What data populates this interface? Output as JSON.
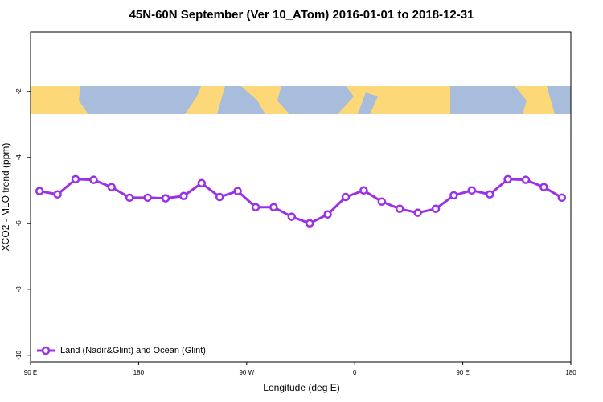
{
  "chart_data": {
    "type": "line",
    "title": "45N-60N September (Ver 10_ATom)   2016-01-01 to 2018-12-31",
    "x_label": "Longitude (deg E)",
    "y_label": "XCO2 - MLO trend (ppm)",
    "xlim": [
      90,
      540
    ],
    "xticks": [
      {
        "value": 90,
        "label": "90 E"
      },
      180,
      {
        "value": 270,
        "label": "90 W"
      },
      {
        "value": 360,
        "label": "0"
      },
      {
        "value": 450,
        "label": "90 E"
      },
      {
        "value": 540,
        "label": "180"
      }
    ],
    "ylim": [
      -10.2,
      -0.2
    ],
    "yticks": [
      -10,
      -8,
      -6,
      -4,
      -2
    ],
    "legend": "bottom-left",
    "x": [
      97.5,
      112.5,
      127.5,
      142.5,
      157.5,
      172.5,
      187.5,
      202.5,
      217.5,
      232.5,
      247.5,
      262.5,
      277.5,
      292.5,
      307.5,
      322.5,
      337.5,
      352.5,
      367.5,
      382.5,
      397.5,
      412.5,
      427.5,
      442.5,
      457.5,
      472.5,
      487.5,
      502.5,
      517.5,
      532.5
    ],
    "series": [
      {
        "name": "Land (Nadir&Glint) and Ocean (Glint)",
        "color": "#9b30e6",
        "values": [
          -5.02,
          -5.12,
          -4.66,
          -4.68,
          -4.9,
          -5.22,
          -5.22,
          -5.24,
          -5.17,
          -4.78,
          -5.2,
          -5.02,
          -5.51,
          -5.51,
          -5.8,
          -6.0,
          -5.73,
          -5.2,
          -5.0,
          -5.34,
          -5.56,
          -5.68,
          -5.56,
          -5.15,
          -5.0,
          -5.12,
          -4.66,
          -4.68,
          -4.9,
          -5.22
        ]
      }
    ]
  }
}
